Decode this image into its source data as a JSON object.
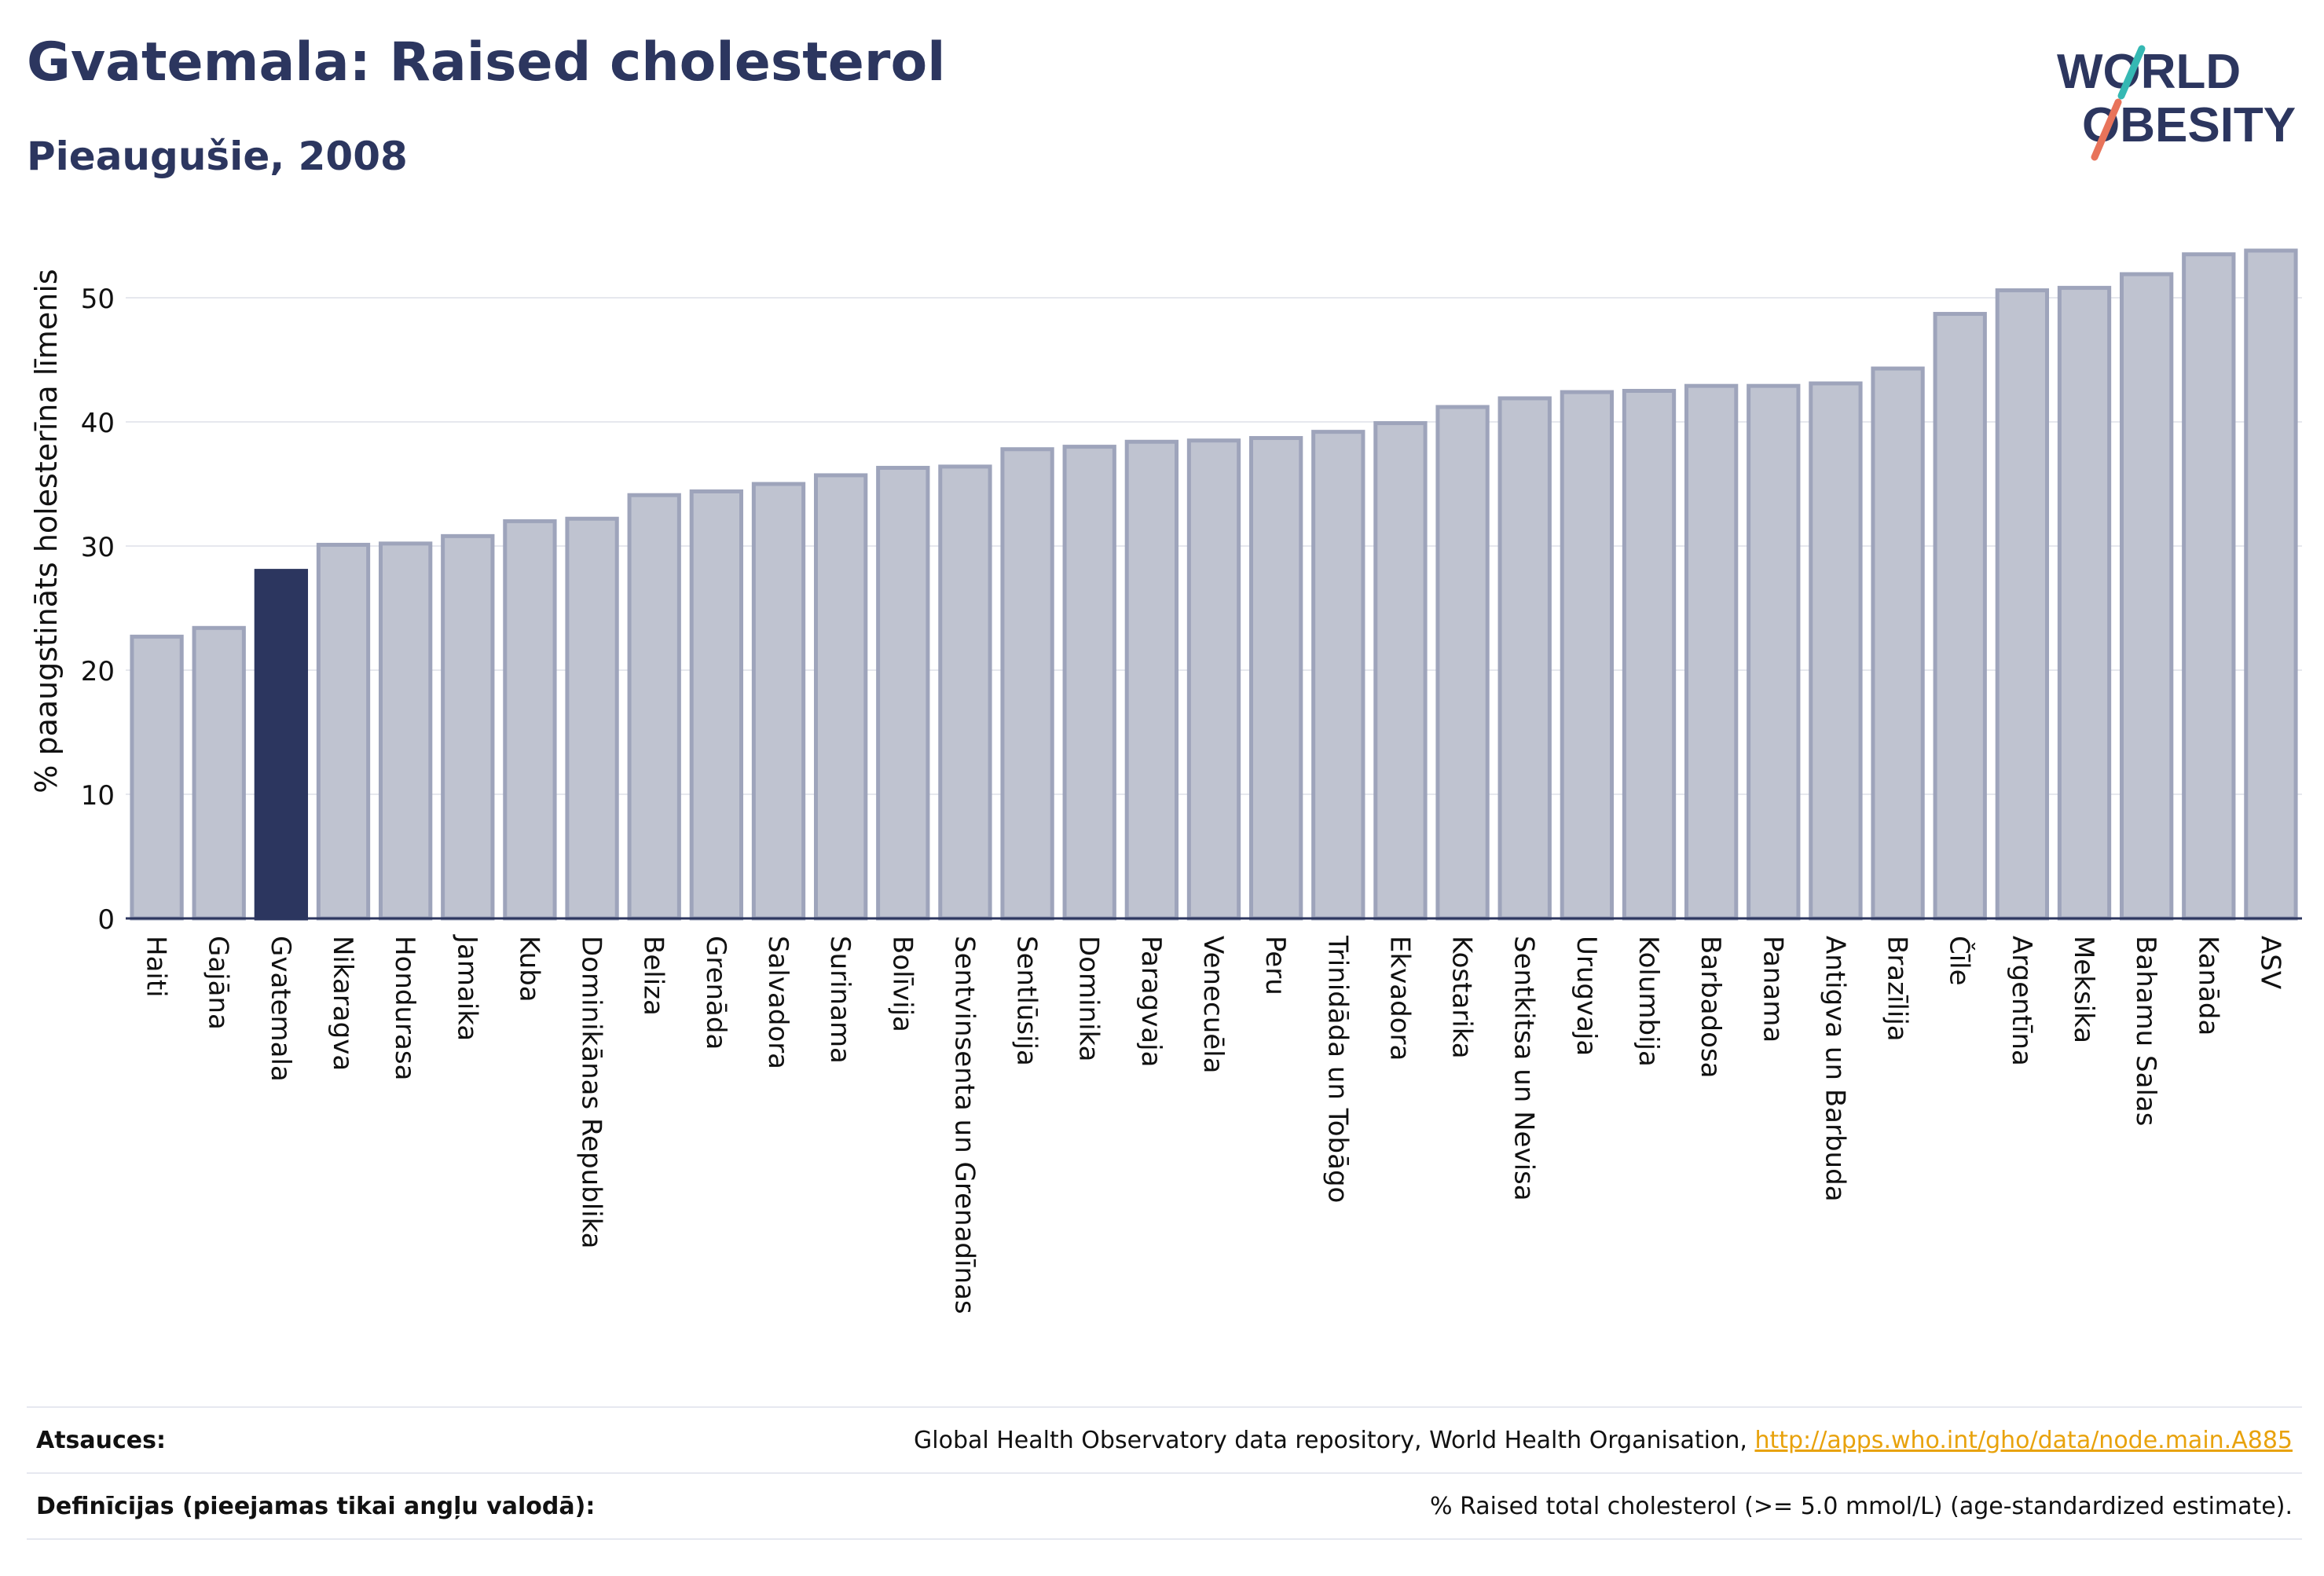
{
  "header": {
    "title": "Gvatemala: Raised cholesterol",
    "subtitle": "Pieaugušie, 2008"
  },
  "logo": {
    "line1": "WORLD",
    "line2": "OBESITY"
  },
  "footer": {
    "sources_label": "Atsauces:",
    "sources_text": "Global Health Observatory data repository, World Health Organisation, ",
    "sources_link": "http://apps.who.int/gho/data/node.main.A885",
    "definitions_label": "Definīcijas (pieejamas tikai angļu valodā):",
    "definitions_text": "% Raised total cholesterol (>= 5.0 mmol/L) (age-standardized estimate)."
  },
  "colors": {
    "highlight": "#2c365f",
    "bar": "#bfc3d0",
    "bar_border": "#9ea4bb",
    "grid": "#e6e8ee",
    "text": "#2c365f"
  },
  "chart_data": {
    "type": "bar",
    "ylabel": "% paaugstināts holesterīna līmenis",
    "ylim": [
      0,
      55
    ],
    "yticks": [
      0,
      10,
      20,
      30,
      40,
      50
    ],
    "highlight": "Gvatemala",
    "categories": [
      "Haiti",
      "Gajāna",
      "Gvatemala",
      "Nikaragva",
      "Hondurasa",
      "Jamaika",
      "Kuba",
      "Dominikānas Republika",
      "Beliza",
      "Grenāda",
      "Salvadora",
      "Surinama",
      "Bolīvija",
      "Sentvinsenta un Grenadīnas",
      "Sentlūsija",
      "Dominika",
      "Paragvaja",
      "Venecuēla",
      "Peru",
      "Trinidāda un Tobāgo",
      "Ekvadora",
      "Kostarika",
      "Sentkitsa un Nevisa",
      "Urugvaja",
      "Kolumbija",
      "Barbadosa",
      "Panama",
      "Antigva un Barbuda",
      "Brazīlija",
      "Čīle",
      "Argentīna",
      "Meksika",
      "Bahamu Salas",
      "Kanāda",
      "ASV"
    ],
    "values": [
      22.7,
      23.4,
      28.0,
      30.1,
      30.2,
      30.8,
      32.0,
      32.2,
      34.1,
      34.4,
      35.0,
      35.7,
      36.3,
      36.4,
      37.8,
      38.0,
      38.4,
      38.5,
      38.7,
      39.2,
      39.9,
      41.2,
      41.9,
      42.4,
      42.5,
      42.9,
      42.9,
      43.1,
      44.3,
      48.7,
      50.6,
      50.8,
      51.9,
      53.5,
      53.8
    ]
  }
}
